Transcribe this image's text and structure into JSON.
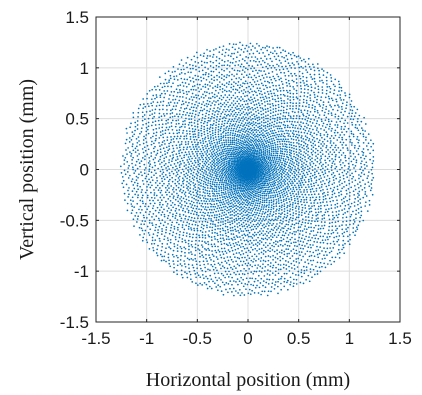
{
  "chart_data": {
    "type": "scatter",
    "title": "",
    "xlabel": "Horizontal position (mm)",
    "ylabel": "Vertical position (mm)",
    "xlim": [
      -1.5,
      1.5
    ],
    "ylim": [
      -1.5,
      1.5
    ],
    "xticks": [
      -1.5,
      -1,
      -0.5,
      0,
      0.5,
      1,
      1.5
    ],
    "yticks": [
      -1.5,
      -1,
      -0.5,
      0,
      0.5,
      1,
      1.5
    ],
    "xtick_labels": [
      "-1.5",
      "-1",
      "-0.5",
      "0",
      "0.5",
      "1",
      "1.5"
    ],
    "ytick_labels": [
      "-1.5",
      "-1",
      "-0.5",
      "0",
      "0.5",
      "1",
      "1.5"
    ],
    "grid": true,
    "marker_color": "#0072BD",
    "distribution": {
      "shape": "circular",
      "center": [
        0,
        0
      ],
      "max_radius": 1.25,
      "approx_point_count": 6000
    }
  }
}
